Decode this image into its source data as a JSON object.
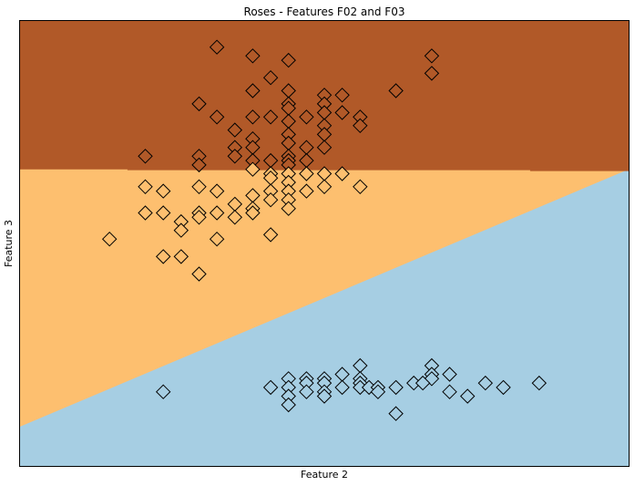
{
  "chart_data": {
    "type": "scatter",
    "title": "Roses - Features F02 and F03",
    "xlabel": "Feature 2",
    "ylabel": "Feature 3",
    "xlim": [
      0.0,
      6.8
    ],
    "ylim": [
      -0.2,
      4.9
    ],
    "xticks": [],
    "yticks": [],
    "grid": false,
    "legend": "none",
    "marker": "diamond",
    "marker_edge_color": "#000000",
    "colors": {
      "region_top": "#b15928",
      "region_middle": "#fdbf6f",
      "region_bottom": "#a6cee3"
    },
    "decision_regions": {
      "upper_boundary": {
        "x": [
          0.0,
          1.2,
          1.2,
          5.7,
          5.7,
          6.8
        ],
        "y": [
          3.2,
          3.2,
          3.19,
          3.19,
          3.18,
          3.18
        ]
      },
      "lower_boundary": {
        "x": [
          0.0,
          6.8
        ],
        "y": [
          0.25,
          3.2
        ]
      }
    },
    "series": [
      {
        "class": "top",
        "color": "#b15928",
        "points": [
          [
            2.2,
            4.6
          ],
          [
            2.6,
            4.5
          ],
          [
            3.0,
            4.45
          ],
          [
            4.6,
            4.5
          ],
          [
            4.6,
            4.3
          ],
          [
            2.8,
            4.25
          ],
          [
            2.6,
            4.1
          ],
          [
            3.0,
            4.1
          ],
          [
            4.2,
            4.1
          ],
          [
            3.4,
            4.05
          ],
          [
            3.6,
            4.05
          ],
          [
            2.0,
            3.95
          ],
          [
            3.0,
            3.95
          ],
          [
            3.4,
            3.95
          ],
          [
            3.0,
            3.9
          ],
          [
            3.4,
            3.85
          ],
          [
            3.6,
            3.85
          ],
          [
            2.2,
            3.8
          ],
          [
            2.6,
            3.8
          ],
          [
            2.8,
            3.8
          ],
          [
            3.2,
            3.8
          ],
          [
            3.0,
            3.75
          ],
          [
            3.8,
            3.8
          ],
          [
            3.4,
            3.7
          ],
          [
            3.8,
            3.7
          ],
          [
            2.4,
            3.65
          ],
          [
            3.0,
            3.6
          ],
          [
            3.4,
            3.6
          ],
          [
            2.6,
            3.55
          ],
          [
            3.0,
            3.5
          ],
          [
            2.4,
            3.45
          ],
          [
            2.6,
            3.45
          ],
          [
            3.2,
            3.45
          ],
          [
            3.4,
            3.45
          ],
          [
            3.0,
            3.35
          ],
          [
            1.4,
            3.35
          ],
          [
            2.0,
            3.35
          ],
          [
            2.4,
            3.35
          ],
          [
            2.6,
            3.3
          ],
          [
            2.8,
            3.3
          ],
          [
            3.0,
            3.3
          ],
          [
            3.2,
            3.3
          ],
          [
            2.0,
            3.25
          ],
          [
            3.0,
            3.25
          ]
        ]
      },
      {
        "class": "middle",
        "color": "#fdbf6f",
        "points": [
          [
            2.6,
            3.2
          ],
          [
            2.8,
            3.15
          ],
          [
            3.0,
            3.15
          ],
          [
            3.2,
            3.15
          ],
          [
            3.4,
            3.15
          ],
          [
            3.6,
            3.15
          ],
          [
            2.8,
            3.1
          ],
          [
            3.0,
            3.05
          ],
          [
            1.4,
            3.0
          ],
          [
            2.0,
            3.0
          ],
          [
            3.4,
            3.0
          ],
          [
            3.8,
            3.0
          ],
          [
            1.6,
            2.95
          ],
          [
            2.2,
            2.95
          ],
          [
            2.8,
            2.95
          ],
          [
            3.0,
            2.95
          ],
          [
            3.2,
            2.95
          ],
          [
            2.6,
            2.9
          ],
          [
            2.8,
            2.85
          ],
          [
            3.0,
            2.85
          ],
          [
            2.4,
            2.8
          ],
          [
            2.6,
            2.75
          ],
          [
            3.0,
            2.75
          ],
          [
            1.4,
            2.7
          ],
          [
            1.6,
            2.7
          ],
          [
            2.0,
            2.7
          ],
          [
            2.2,
            2.7
          ],
          [
            2.4,
            2.65
          ],
          [
            2.6,
            2.7
          ],
          [
            2.0,
            2.65
          ],
          [
            1.8,
            2.6
          ],
          [
            1.8,
            2.5
          ],
          [
            1.0,
            2.4
          ],
          [
            2.2,
            2.4
          ],
          [
            2.8,
            2.45
          ],
          [
            1.6,
            2.2
          ],
          [
            1.8,
            2.2
          ],
          [
            2.0,
            2.0
          ]
        ]
      },
      {
        "class": "bottom",
        "color": "#a6cee3",
        "points": [
          [
            3.8,
            0.95
          ],
          [
            4.6,
            0.95
          ],
          [
            3.6,
            0.85
          ],
          [
            4.6,
            0.85
          ],
          [
            4.8,
            0.85
          ],
          [
            3.0,
            0.8
          ],
          [
            3.2,
            0.8
          ],
          [
            3.4,
            0.8
          ],
          [
            3.8,
            0.8
          ],
          [
            4.6,
            0.8
          ],
          [
            3.2,
            0.75
          ],
          [
            3.4,
            0.75
          ],
          [
            3.8,
            0.75
          ],
          [
            4.4,
            0.75
          ],
          [
            4.5,
            0.75
          ],
          [
            5.2,
            0.75
          ],
          [
            5.8,
            0.75
          ],
          [
            2.8,
            0.7
          ],
          [
            3.0,
            0.7
          ],
          [
            3.6,
            0.7
          ],
          [
            3.8,
            0.7
          ],
          [
            3.9,
            0.7
          ],
          [
            4.0,
            0.7
          ],
          [
            4.2,
            0.7
          ],
          [
            5.4,
            0.7
          ],
          [
            3.2,
            0.65
          ],
          [
            3.4,
            0.65
          ],
          [
            4.0,
            0.65
          ],
          [
            1.6,
            0.65
          ],
          [
            4.8,
            0.65
          ],
          [
            3.0,
            0.6
          ],
          [
            3.4,
            0.6
          ],
          [
            5.0,
            0.6
          ],
          [
            3.0,
            0.5
          ],
          [
            4.2,
            0.4
          ]
        ]
      }
    ]
  }
}
